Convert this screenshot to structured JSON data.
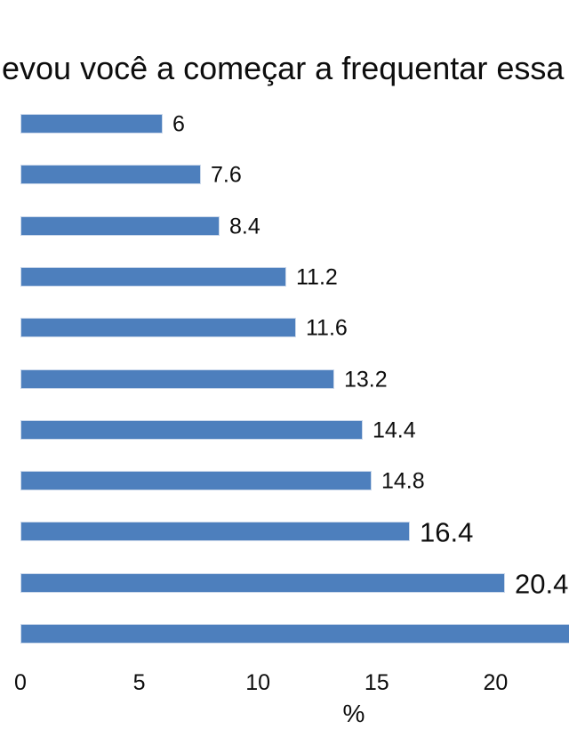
{
  "chart_data": {
    "type": "bar",
    "orientation": "horizontal",
    "title": "evou você a começar a frequentar essa",
    "xlabel": "%",
    "xlim": [
      0,
      23.1
    ],
    "ticks": [
      0,
      5,
      10,
      15,
      20
    ],
    "grid": false,
    "legend": false,
    "categories_visible": false,
    "bars": [
      {
        "value": 6,
        "label": "6",
        "emphasis": false,
        "clipped": false
      },
      {
        "value": 7.6,
        "label": "7.6",
        "emphasis": false,
        "clipped": false
      },
      {
        "value": 8.4,
        "label": "8.4",
        "emphasis": false,
        "clipped": false
      },
      {
        "value": 11.2,
        "label": "11.2",
        "emphasis": false,
        "clipped": false
      },
      {
        "value": 11.6,
        "label": "11.6",
        "emphasis": false,
        "clipped": false
      },
      {
        "value": 13.2,
        "label": "13.2",
        "emphasis": false,
        "clipped": false
      },
      {
        "value": 14.4,
        "label": "14.4",
        "emphasis": false,
        "clipped": false
      },
      {
        "value": 14.8,
        "label": "14.8",
        "emphasis": false,
        "clipped": false
      },
      {
        "value": 16.4,
        "label": "16.4",
        "emphasis": true,
        "clipped": false
      },
      {
        "value": 20.4,
        "label": "20.4",
        "emphasis": true,
        "clipped": false
      },
      {
        "value": 23.1,
        "label": "",
        "emphasis": false,
        "clipped": true
      }
    ],
    "colors": {
      "bar_fill": "#4d7fbd",
      "bar_border": "#ccd9eb",
      "text": "#0d0d0d",
      "background": "#ffffff"
    }
  }
}
